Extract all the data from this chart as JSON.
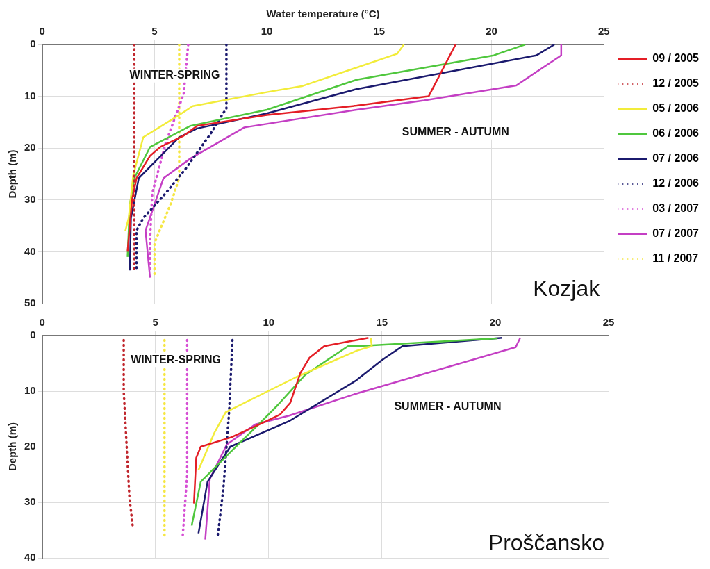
{
  "chart_data": [
    {
      "type": "line",
      "title": "Kozjak",
      "xlabel": "Water temperature (°C)",
      "ylabel": "Depth (m)",
      "xlim": [
        0,
        25
      ],
      "xticks": [
        0,
        5,
        10,
        15,
        20,
        25
      ],
      "ylim": [
        50,
        0
      ],
      "yticks": [
        0,
        10,
        20,
        30,
        40,
        50
      ],
      "grid": true,
      "legend": "right",
      "marker": "none",
      "annotations": [
        "WINTER-SPRING",
        "SUMMER - AUTUMN"
      ],
      "series": [
        {
          "name": "09 / 2005",
          "color": "#e41e26",
          "line_style": "solid",
          "x": [
            18.4,
            17.2,
            14,
            10,
            6.9,
            6.3,
            5.25,
            4.8,
            4.2,
            4.0,
            3.8
          ],
          "values": [
            0,
            10,
            11.8,
            13.6,
            15.7,
            17.6,
            19.8,
            21.5,
            25.8,
            30,
            40
          ]
        },
        {
          "name": "12 / 2005",
          "color": "#c0262d",
          "line_style": "dotted",
          "x": [
            4.1,
            4.1
          ],
          "values": [
            0,
            44
          ]
        },
        {
          "name": "05 / 2006",
          "color": "#f2ec3a",
          "line_style": "solid",
          "x": [
            16.1,
            15.8,
            11.6,
            10,
            6.7,
            6.1,
            4.5,
            4.05,
            3.85,
            3.7
          ],
          "values": [
            0,
            1.8,
            8,
            9.2,
            11.9,
            13.6,
            17.9,
            25.3,
            33.5,
            36
          ]
        },
        {
          "name": "06 / 2006",
          "color": "#4fc73d",
          "line_style": "solid",
          "x": [
            21.5,
            20.1,
            14,
            10,
            6.6,
            4.8,
            4.1,
            3.9,
            3.8
          ],
          "values": [
            0,
            2.1,
            6.8,
            12.6,
            15.7,
            19.8,
            25.8,
            31,
            41
          ]
        },
        {
          "name": "07 / 2006",
          "color": "#1b1a6e",
          "line_style": "solid",
          "x": [
            22.8,
            22,
            14,
            10,
            6.9,
            6.1,
            4.3,
            3.95,
            3.9
          ],
          "values": [
            0,
            2.1,
            8.6,
            13.3,
            16.2,
            17.9,
            25.8,
            33.5,
            43.6
          ]
        },
        {
          "name": "12 / 2006",
          "color": "#1b1a6e",
          "line_style": "dotted",
          "x": [
            8.2,
            8.2,
            8.05,
            7.5,
            6.4,
            5.5,
            4.5,
            4.2,
            4.2
          ],
          "values": [
            0,
            12.4,
            13.3,
            17.2,
            23.9,
            28.7,
            33.5,
            35.9,
            43.8
          ]
        },
        {
          "name": "03 / 2007",
          "color": "#d64fd4",
          "line_style": "dotted",
          "x": [
            6.5,
            6.3,
            5.5,
            4.9,
            4.8,
            4.8
          ],
          "values": [
            0,
            9.5,
            19,
            28.7,
            38,
            44
          ]
        },
        {
          "name": "07 / 2007",
          "color": "#c43fc4",
          "line_style": "solid",
          "x": [
            23.1,
            23.1,
            21.1,
            17,
            14,
            9,
            6.6,
            5.4,
            4.6,
            4.8
          ],
          "values": [
            0,
            2.1,
            7.9,
            10.8,
            12.6,
            16,
            22,
            25.8,
            35.9,
            45
          ]
        },
        {
          "name": "11 / 2007",
          "color": "#f5e642",
          "line_style": "dotted",
          "x": [
            6.1,
            6.1,
            6.1,
            5.7,
            5.0,
            5.0
          ],
          "values": [
            0,
            12.8,
            25.8,
            31,
            38.3,
            45
          ]
        }
      ]
    },
    {
      "type": "line",
      "title": "Proščansko",
      "ylabel": "Depth (m)",
      "xlim": [
        0,
        25
      ],
      "xticks": [
        0,
        5,
        10,
        15,
        20,
        25
      ],
      "ylim": [
        40,
        0
      ],
      "yticks": [
        0,
        10,
        20,
        30,
        40
      ],
      "grid": true,
      "marker": "none",
      "annotations": [
        "WINTER-SPRING",
        "SUMMER - AUTUMN"
      ],
      "series": [
        {
          "color": "#e41e26",
          "line_style": "solid",
          "x": [
            14.4,
            12.45,
            11.8,
            11.4,
            10.95,
            10.5,
            9.9,
            8.35,
            7.0,
            6.8,
            6.7
          ],
          "values": [
            0.4,
            1.9,
            4,
            6.7,
            12.1,
            14.2,
            15.4,
            18.3,
            20,
            22,
            30.2
          ]
        },
        {
          "color": "#c0262d",
          "line_style": "dotted",
          "x": [
            3.6,
            3.6,
            3.85,
            4.0
          ],
          "values": [
            0.8,
            10,
            29,
            34.4
          ]
        },
        {
          "color": "#f2ec3a",
          "line_style": "solid",
          "x": [
            14.5,
            14.55,
            13.9,
            11.2,
            8.1,
            7.6,
            6.9
          ],
          "values": [
            0.4,
            1.9,
            2.7,
            7.5,
            13.8,
            17.5,
            24.2
          ]
        },
        {
          "color": "#4fc73d",
          "line_style": "solid",
          "x": [
            20.1,
            13.9,
            13.5,
            11.6,
            10.4,
            9.6,
            8.35,
            7.0,
            6.6
          ],
          "values": [
            0.5,
            1.9,
            1.9,
            7.1,
            12.5,
            15.8,
            20.8,
            26.3,
            34.2
          ]
        },
        {
          "color": "#1b1a6e",
          "line_style": "solid",
          "x": [
            20.3,
            15.9,
            15.0,
            13.85,
            10.9,
            8.3,
            7.3,
            6.9
          ],
          "values": [
            0.4,
            1.9,
            4.4,
            8.1,
            15.4,
            20,
            26.3,
            35.6
          ]
        },
        {
          "color": "#1b1a6e",
          "line_style": "dotted",
          "x": [
            8.4,
            8.25,
            8.0,
            7.75
          ],
          "values": [
            0.8,
            13.8,
            27.5,
            36
          ]
        },
        {
          "color": "#d64fd4",
          "line_style": "dotted",
          "x": [
            6.4,
            6.4,
            6.2
          ],
          "values": [
            0.8,
            25,
            36.3
          ]
        },
        {
          "color": "#c43fc4",
          "line_style": "solid",
          "x": [
            21.1,
            20.9,
            13.9,
            10.9,
            9.4,
            8.15,
            7.4,
            7.2
          ],
          "values": [
            0.4,
            2.1,
            10.4,
            14.4,
            16,
            19.6,
            25.8,
            36.7
          ]
        },
        {
          "color": "#f5e642",
          "line_style": "dotted",
          "x": [
            5.4,
            5.4
          ],
          "values": [
            0.8,
            36.3
          ]
        }
      ]
    }
  ]
}
